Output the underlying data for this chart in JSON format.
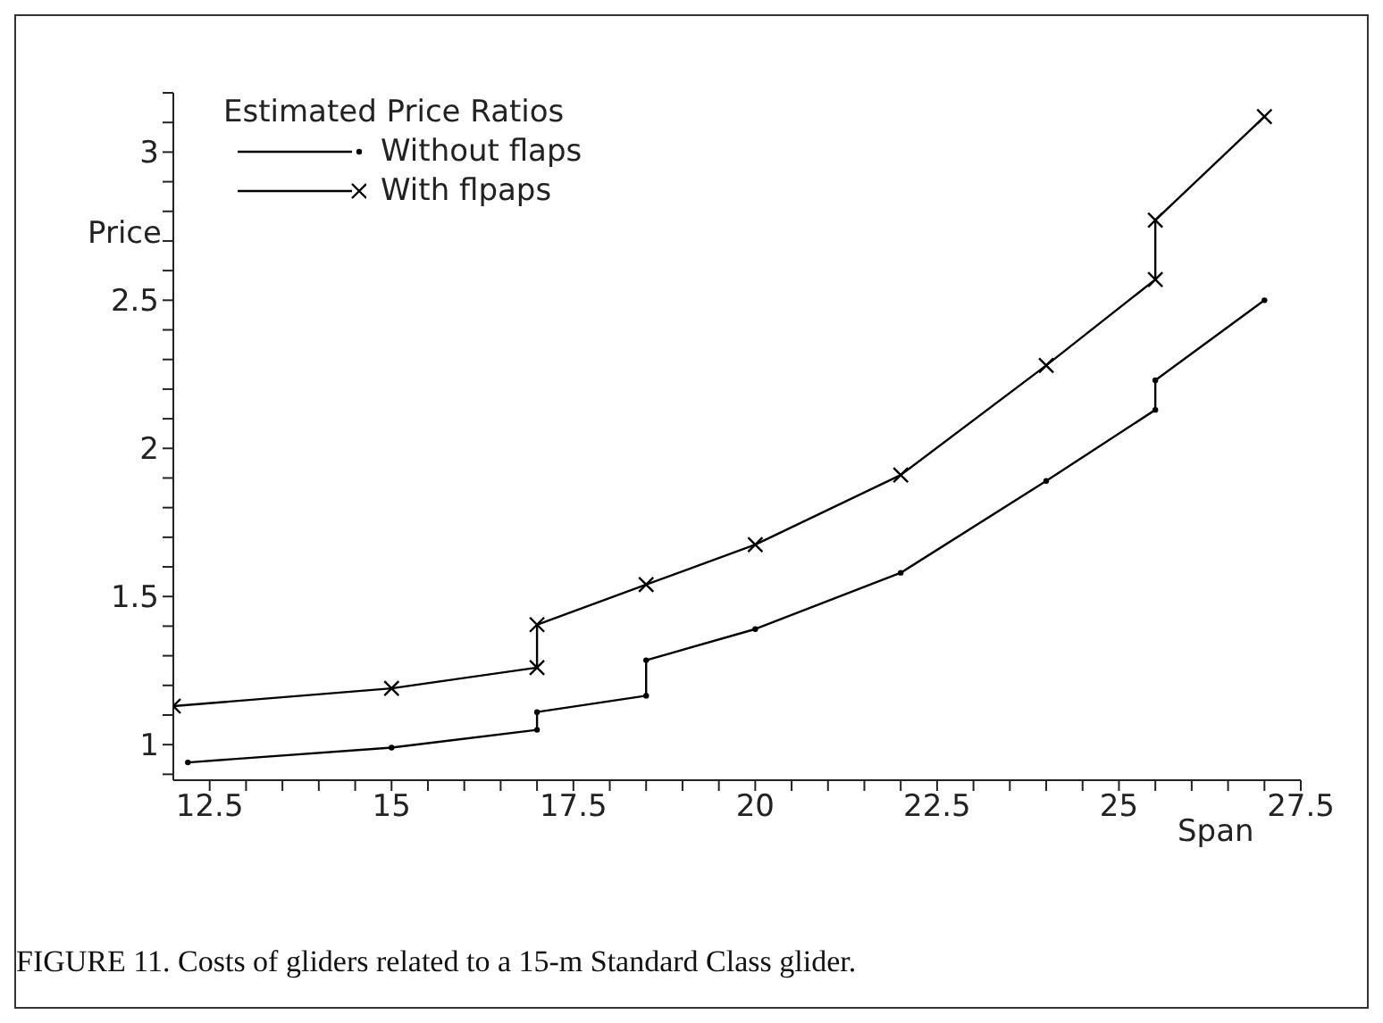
{
  "chart_data": {
    "type": "line",
    "legend_title": "Estimated Price Ratios",
    "ylabel": "Price",
    "xlabel": "Span",
    "annotations": [
      "FIGURE 11. Costs of gliders related to a 15-m Standard Class glider."
    ],
    "xlim": [
      12,
      27.5
    ],
    "ylim": [
      0.88,
      3.2
    ],
    "xticks": [
      {
        "value": 12.5,
        "label": "12.5"
      },
      {
        "value": 13,
        "label": null
      },
      {
        "value": 13.5,
        "label": null
      },
      {
        "value": 14,
        "label": null
      },
      {
        "value": 14.5,
        "label": null
      },
      {
        "value": 15,
        "label": "15"
      },
      {
        "value": 15.5,
        "label": null
      },
      {
        "value": 16,
        "label": null
      },
      {
        "value": 16.5,
        "label": null
      },
      {
        "value": 17,
        "label": null
      },
      {
        "value": 17.5,
        "label": "17.5"
      },
      {
        "value": 18,
        "label": null
      },
      {
        "value": 18.5,
        "label": null
      },
      {
        "value": 19,
        "label": null
      },
      {
        "value": 19.5,
        "label": null
      },
      {
        "value": 20,
        "label": "20"
      },
      {
        "value": 20.5,
        "label": null
      },
      {
        "value": 21,
        "label": null
      },
      {
        "value": 21.5,
        "label": null
      },
      {
        "value": 22,
        "label": null
      },
      {
        "value": 22.5,
        "label": "22.5"
      },
      {
        "value": 23,
        "label": null
      },
      {
        "value": 23.5,
        "label": null
      },
      {
        "value": 24,
        "label": null
      },
      {
        "value": 24.5,
        "label": null
      },
      {
        "value": 25,
        "label": "25"
      },
      {
        "value": 25.5,
        "label": null
      },
      {
        "value": 26,
        "label": null
      },
      {
        "value": 26.5,
        "label": null
      },
      {
        "value": 27,
        "label": null
      },
      {
        "value": 27.5,
        "label": "27.5"
      }
    ],
    "yticks": [
      {
        "value": 0.9,
        "label": null
      },
      {
        "value": 1,
        "label": "1"
      },
      {
        "value": 1.1,
        "label": null
      },
      {
        "value": 1.2,
        "label": null
      },
      {
        "value": 1.3,
        "label": null
      },
      {
        "value": 1.4,
        "label": null
      },
      {
        "value": 1.5,
        "label": "1.5"
      },
      {
        "value": 1.6,
        "label": null
      },
      {
        "value": 1.7,
        "label": null
      },
      {
        "value": 1.8,
        "label": null
      },
      {
        "value": 1.9,
        "label": null
      },
      {
        "value": 2,
        "label": "2"
      },
      {
        "value": 2.1,
        "label": null
      },
      {
        "value": 2.2,
        "label": null
      },
      {
        "value": 2.3,
        "label": null
      },
      {
        "value": 2.4,
        "label": null
      },
      {
        "value": 2.5,
        "label": "2.5"
      },
      {
        "value": 2.6,
        "label": null
      },
      {
        "value": 2.7,
        "label": null
      },
      {
        "value": 2.8,
        "label": null
      },
      {
        "value": 2.9,
        "label": null
      },
      {
        "value": 3,
        "label": "3"
      },
      {
        "value": 3.1,
        "label": null
      },
      {
        "value": 3.2,
        "label": null
      }
    ],
    "grid": false,
    "legend": "top left",
    "line_style": "solid",
    "series": [
      {
        "name": "Without flaps",
        "color": "#000000",
        "marker": "circle",
        "x": [
          12.2,
          15,
          17,
          17,
          18.5,
          18.5,
          20,
          22,
          24,
          25.5,
          25.5,
          27
        ],
        "values": [
          0.94,
          0.99,
          1.05,
          1.11,
          1.165,
          1.285,
          1.39,
          1.58,
          1.89,
          2.13,
          2.23,
          2.5
        ]
      },
      {
        "name": "With flpaps",
        "color": "#000000",
        "marker": "cross",
        "x": [
          12,
          15,
          17,
          17,
          18.5,
          20,
          22,
          24,
          25.5,
          25.5,
          27
        ],
        "values": [
          1.13,
          1.19,
          1.26,
          1.405,
          1.54,
          1.675,
          1.91,
          2.28,
          2.57,
          2.77,
          3.12
        ]
      }
    ]
  }
}
